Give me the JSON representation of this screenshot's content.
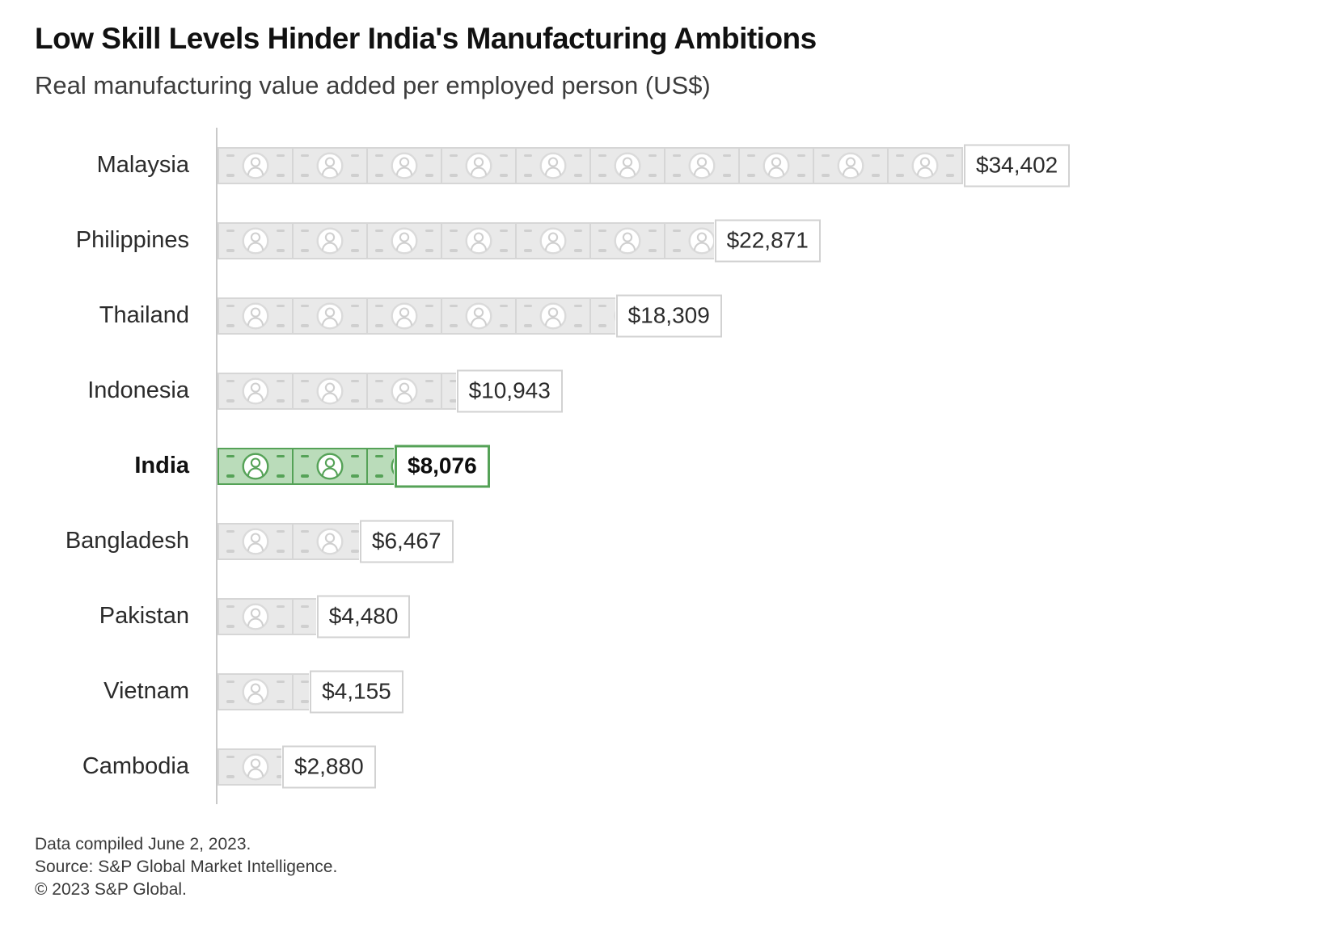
{
  "header": {
    "title": "Low Skill Levels Hinder India's Manufacturing Ambitions",
    "subtitle": "Real manufacturing value added per employed person (US$)"
  },
  "chart_data": {
    "type": "bar",
    "orientation": "horizontal",
    "title": "Low Skill Levels Hinder India's Manufacturing Ambitions",
    "subtitle": "Real manufacturing value added per employed person (US$)",
    "unit": "US$",
    "categories": [
      "Malaysia",
      "Philippines",
      "Thailand",
      "Indonesia",
      "India",
      "Bangladesh",
      "Pakistan",
      "Vietnam",
      "Cambodia"
    ],
    "values": [
      34402,
      22871,
      18309,
      10943,
      8076,
      6467,
      4480,
      4155,
      2880
    ],
    "value_labels": [
      "$34,402",
      "$22,871",
      "$18,309",
      "$10,943",
      "$8,076",
      "$6,467",
      "$4,480",
      "$4,155",
      "$2,880"
    ],
    "highlight_category": "India",
    "bar_style": "pictogram of banknotes, each note showing a person-in-circle icon",
    "note_unit_value": 3440.2,
    "xlim": [
      0,
      36000
    ],
    "grid": false,
    "legend": false,
    "colors": {
      "note_fill": "#e9e9e9",
      "note_border": "#d6d6d6",
      "note_ring": "#dadada",
      "note_person": "#cfcfcf",
      "highlight_fill": "#badcba",
      "highlight_border": "#55a257",
      "axis": "#c9c9c9",
      "label_box_border": "#d2d2d2",
      "label_box_fill": "#ffffff",
      "text": "#2b2b2b"
    }
  },
  "footer": {
    "lines": [
      "Data compiled June 2, 2023.",
      "Source: S&P Global Market Intelligence.",
      "© 2023 S&P Global."
    ]
  }
}
